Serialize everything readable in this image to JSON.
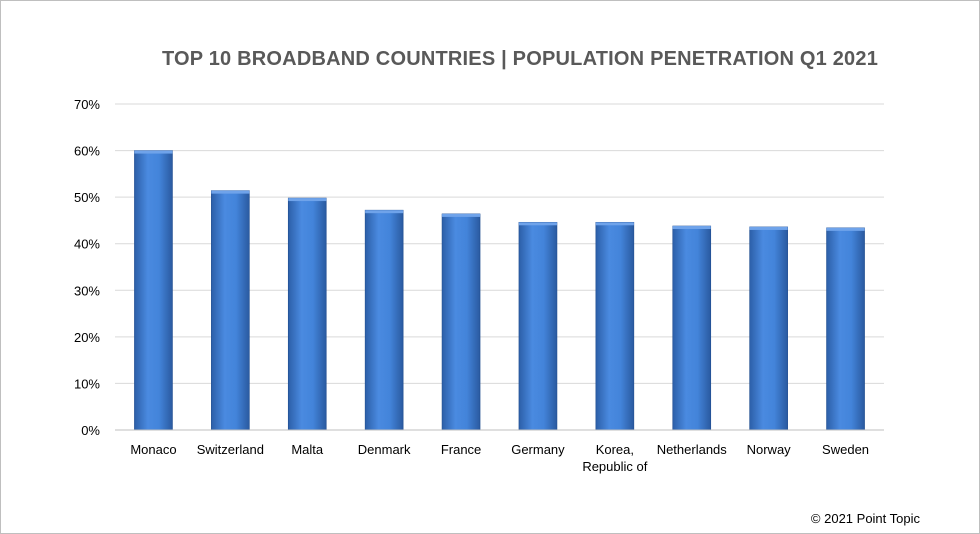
{
  "chart_data": {
    "type": "bar",
    "title": "TOP 10 BROADBAND COUNTRIES | POPULATION PENETRATION Q1 2021",
    "categories": [
      "Monaco",
      "Switzerland",
      "Malta",
      "Denmark",
      "France",
      "Germany",
      "Korea, Republic of",
      "Netherlands",
      "Norway",
      "Sweden"
    ],
    "category_lines": [
      [
        "Monaco"
      ],
      [
        "Switzerland"
      ],
      [
        "Malta"
      ],
      [
        "Denmark"
      ],
      [
        "France"
      ],
      [
        "Germany"
      ],
      [
        "Korea,",
        "Republic of"
      ],
      [
        "Netherlands"
      ],
      [
        "Norway"
      ],
      [
        "Sweden"
      ]
    ],
    "values": [
      60.0,
      51.4,
      49.8,
      47.2,
      46.4,
      44.6,
      44.6,
      43.8,
      43.6,
      43.4
    ],
    "yticks": [
      "0%",
      "10%",
      "20%",
      "30%",
      "40%",
      "50%",
      "60%",
      "70%"
    ],
    "ylim": [
      0,
      70
    ],
    "xlabel": "",
    "ylabel": "",
    "grid": true,
    "bar_color": "#3f7fd6"
  },
  "footer": {
    "copyright": "© 2021 Point Topic"
  }
}
